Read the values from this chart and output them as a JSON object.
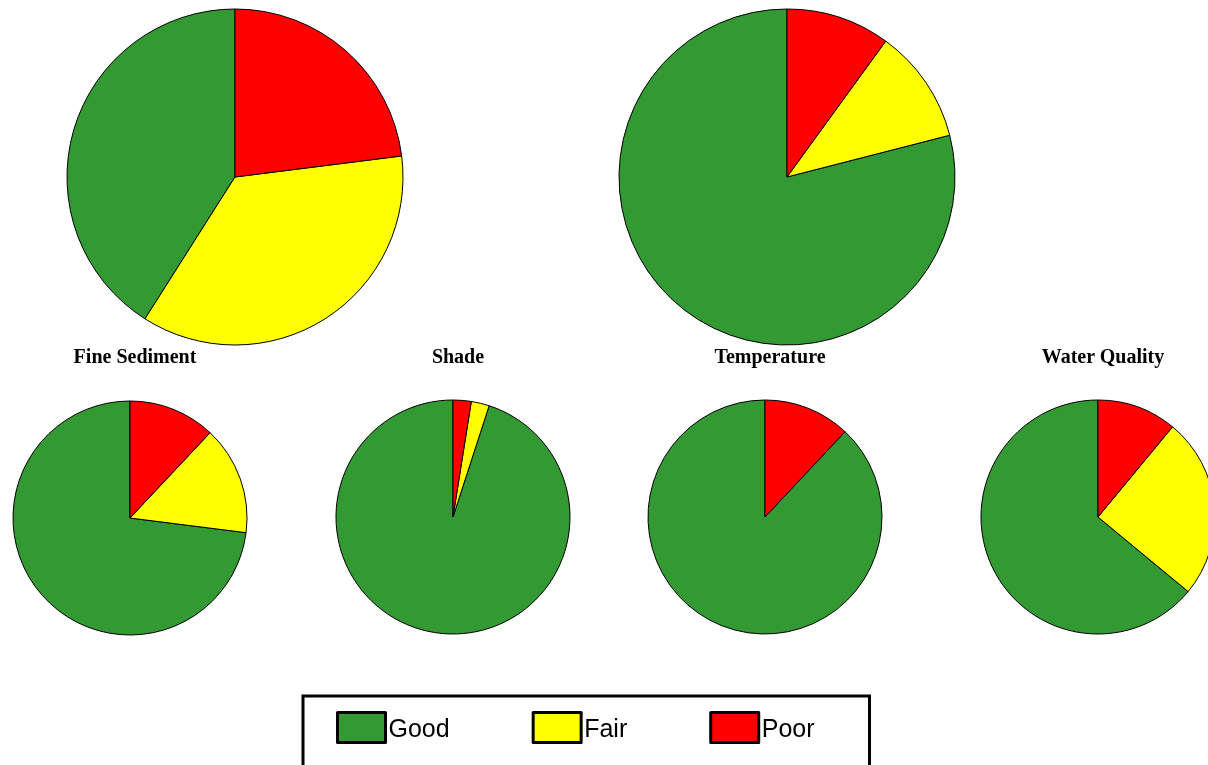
{
  "chart_data": [
    {
      "type": "pie",
      "categories": [
        "Good",
        "Fair",
        "Poor"
      ],
      "values": [
        41,
        36,
        23
      ],
      "colors": [
        "#339933",
        "#ffff00",
        "#ff0000"
      ],
      "legend": "bottom"
    },
    {
      "type": "pie",
      "categories": [
        null,
        null,
        null
      ],
      "values": [
        79,
        11,
        10
      ],
      "colors": [
        "#339933",
        "#ffff00",
        "#ff0000"
      ]
    },
    {
      "type": "pie",
      "title": "Fine Sediment",
      "categories": [
        null,
        null,
        null
      ],
      "values": [
        73,
        15,
        12
      ],
      "colors": [
        "#339933",
        "#ffff00",
        "#ff0000"
      ]
    },
    {
      "type": "pie",
      "title": "Shade",
      "categories": [
        null,
        null,
        null
      ],
      "values": [
        95,
        2.5,
        2.5
      ],
      "colors": [
        "#339933",
        "#ffff00",
        "#ff0000"
      ]
    },
    {
      "type": "pie",
      "title": "Temperature",
      "categories": [
        null,
        null,
        null
      ],
      "values": [
        88,
        0,
        12
      ],
      "colors": [
        "#339933",
        "#ffff00",
        "#ff0000"
      ]
    },
    {
      "type": "pie",
      "title": "Water Quality",
      "categories": [
        null,
        null,
        null
      ],
      "values": [
        64,
        25,
        11
      ],
      "colors": [
        "#339933",
        "#ffff00",
        "#ff0000"
      ]
    }
  ]
}
